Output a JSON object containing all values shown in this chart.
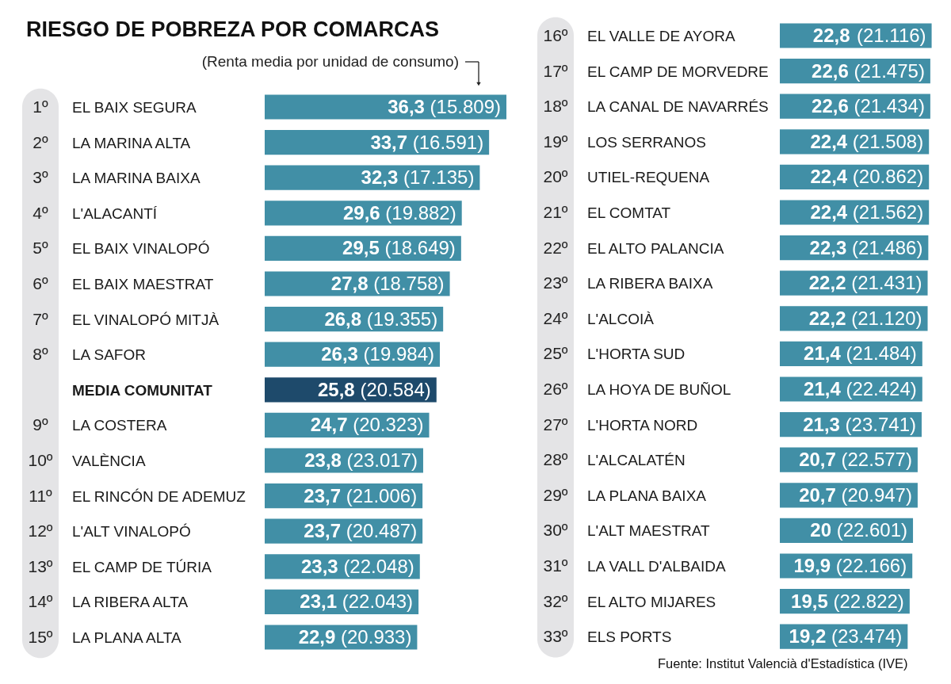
{
  "chart_data": [
    {
      "type": "bar",
      "orientation": "horizontal",
      "title": "RIESGO DE POBREZA POR COMARCAS",
      "subtitle": "(Renta media por unidad de consumo)",
      "tick_labels": "y",
      "categories": [
        "EL BAIX SEGURA",
        "LA MARINA ALTA",
        "LA MARINA BAIXA",
        "L'ALACANTÍ",
        "EL BAIX VINALOPÓ",
        "EL BAIX MAESTRAT",
        "EL VINALOPÓ MITJÀ",
        "LA SAFOR",
        "MEDIA COMUNITAT",
        "LA COSTERA",
        "VALÈNCIA",
        "EL RINCÓN DE ADEMUZ",
        "L'ALT VINALOPÓ",
        "EL CAMP DE TÚRIA",
        "LA RIBERA ALTA",
        "LA PLANA ALTA"
      ],
      "values": [
        36.3,
        33.7,
        32.3,
        29.6,
        29.5,
        27.8,
        26.8,
        26.3,
        25.8,
        24.7,
        23.8,
        23.7,
        23.7,
        23.3,
        23.1,
        22.9
      ],
      "colors": [
        "#418fa6",
        "#418fa6",
        "#418fa6",
        "#418fa6",
        "#418fa6",
        "#418fa6",
        "#418fa6",
        "#418fa6",
        "#1e4a6b",
        "#418fa6",
        "#418fa6",
        "#418fa6",
        "#418fa6",
        "#418fa6",
        "#418fa6",
        "#418fa6"
      ],
      "value_labels": [
        "36,3",
        "33,7",
        "32,3",
        "29,6",
        "29,5",
        "27,8",
        "26,8",
        "26,3",
        "25,8",
        "24,7",
        "23,8",
        "23,7",
        "23,7",
        "23,3",
        "23,1",
        "22,9"
      ],
      "annotations": [
        "1º",
        "2º",
        "3º",
        "4º",
        "5º",
        "6º",
        "7º",
        "8º",
        "9º",
        "10º",
        "11º",
        "12º",
        "13º",
        "14º",
        "15º",
        {
          "text": "(15.809)",
          "x": 36.3,
          "y": "EL BAIX SEGURA"
        },
        {
          "text": "(16.591)",
          "x": 33.7,
          "y": "LA MARINA ALTA"
        },
        {
          "text": "(17.135)",
          "x": 32.3,
          "y": "LA MARINA BAIXA"
        },
        {
          "text": "(19.882)",
          "x": 29.6,
          "y": "L'ALACANTÍ"
        },
        {
          "text": "(18.649)",
          "x": 29.5,
          "y": "EL BAIX VINALOPÓ"
        },
        {
          "text": "(18.758)",
          "x": 27.8,
          "y": "EL BAIX MAESTRAT"
        },
        {
          "text": "(19.355)",
          "x": 26.8,
          "y": "EL VINALOPÓ MITJÀ"
        },
        {
          "text": "(19.984)",
          "x": 26.3,
          "y": "LA SAFOR"
        },
        {
          "text": "(20.584)",
          "x": 25.8,
          "y": "MEDIA COMUNITAT"
        },
        {
          "text": "(20.323)",
          "x": 24.7,
          "y": "LA COSTERA"
        },
        {
          "text": "(23.017)",
          "x": 23.8,
          "y": "VALÈNCIA"
        },
        {
          "text": "(21.006)",
          "x": 23.7,
          "y": "EL RINCÓN DE ADEMUZ"
        },
        {
          "text": "(20.487)",
          "x": 23.7,
          "y": "L'ALT VINALOPÓ"
        },
        {
          "text": "(22.048)",
          "x": 23.3,
          "y": "EL CAMP DE TÚRIA"
        },
        {
          "text": "(22.043)",
          "x": 23.1,
          "y": "LA RIBERA ALTA"
        },
        {
          "text": "(20.933)",
          "x": 22.9,
          "y": "LA PLANA ALTA"
        }
      ]
    },
    {
      "type": "bar",
      "orientation": "horizontal",
      "tick_labels": "y",
      "categories": [
        "EL VALLE DE AYORA",
        "EL CAMP DE MORVEDRE",
        "LA CANAL DE NAVARRÉS",
        "LOS SERRANOS",
        "UTIEL-REQUENA",
        "EL COMTAT",
        "EL ALTO PALANCIA",
        "LA RIBERA BAIXA",
        "L'ALCOIÀ",
        "L'HORTA SUD",
        "LA HOYA DE BUÑOL",
        "L'HORTA NORD",
        "L'ALCALATÉN",
        "LA PLANA BAIXA",
        "L'ALT MAESTRAT",
        "LA VALL D'ALBAIDA",
        "EL ALTO MIJARES",
        "ELS PORTS"
      ],
      "values": [
        22.8,
        22.6,
        22.6,
        22.4,
        22.4,
        22.4,
        22.3,
        22.2,
        22.2,
        21.4,
        21.4,
        21.3,
        20.7,
        20.7,
        20,
        19.9,
        19.5,
        19.2
      ],
      "colors": [
        "#418fa6",
        "#418fa6",
        "#418fa6",
        "#418fa6",
        "#418fa6",
        "#418fa6",
        "#418fa6",
        "#418fa6",
        "#418fa6",
        "#418fa6",
        "#418fa6",
        "#418fa6",
        "#418fa6",
        "#418fa6",
        "#418fa6",
        "#418fa6",
        "#418fa6",
        "#418fa6"
      ],
      "value_labels": [
        "22,8",
        "22,6",
        "22,6",
        "22,4",
        "22,4",
        "22,4",
        "22,3",
        "22,2",
        "22,2",
        "21,4",
        "21,4",
        "21,3",
        "20,7",
        "20,7",
        "20",
        "19,9",
        "19,5",
        "19,2"
      ],
      "annotations": [
        "16º",
        "17º",
        "18º",
        "19º",
        "20º",
        "21º",
        "22º",
        "23º",
        "24º",
        "25º",
        "26º",
        "27º",
        "28º",
        "29º",
        "30º",
        "31º",
        "32º",
        "33º",
        "Fuente: Institut Valencià d'Estadística (IVE)",
        {
          "text": "(21.116)",
          "x": 22.8,
          "y": "EL VALLE DE AYORA"
        },
        {
          "text": "(21.475)",
          "x": 22.6,
          "y": "EL CAMP DE MORVEDRE"
        },
        {
          "text": "(21.434)",
          "x": 22.6,
          "y": "LA CANAL DE NAVARRÉS"
        },
        {
          "text": "(21.508)",
          "x": 22.4,
          "y": "LOS SERRANOS"
        },
        {
          "text": "(20.862)",
          "x": 22.4,
          "y": "UTIEL-REQUENA"
        },
        {
          "text": "(21.562)",
          "x": 22.4,
          "y": "EL COMTAT"
        },
        {
          "text": "(21.486)",
          "x": 22.3,
          "y": "EL ALTO PALANCIA"
        },
        {
          "text": "(21.431)",
          "x": 22.2,
          "y": "LA RIBERA BAIXA"
        },
        {
          "text": "(21.120)",
          "x": 22.2,
          "y": "L'ALCOIÀ"
        },
        {
          "text": "(21.484)",
          "x": 21.4,
          "y": "L'HORTA SUD"
        },
        {
          "text": "(22.424)",
          "x": 21.4,
          "y": "LA HOYA DE BUÑOL"
        },
        {
          "text": "(23.741)",
          "x": 21.3,
          "y": "L'HORTA NORD"
        },
        {
          "text": "(22.577)",
          "x": 20.7,
          "y": "L'ALCALATÉN"
        },
        {
          "text": "(20.947)",
          "x": 20.7,
          "y": "LA PLANA BAIXA"
        },
        {
          "text": "(22.601)",
          "x": 20,
          "y": "L'ALT MAESTRAT"
        },
        {
          "text": "(22.166)",
          "x": 19.9,
          "y": "LA VALL D'ALBAIDA"
        },
        {
          "text": "(22.822)",
          "x": 19.5,
          "y": "EL ALTO MIJARES"
        },
        {
          "text": "(23.474)",
          "x": 19.2,
          "y": "ELS PORTS"
        }
      ]
    }
  ]
}
